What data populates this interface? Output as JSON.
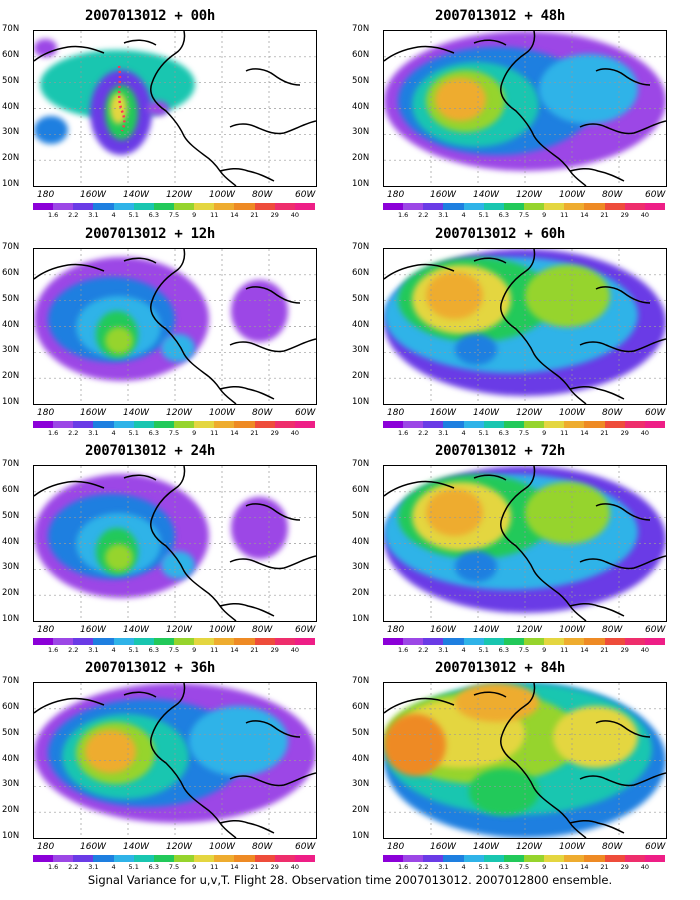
{
  "panels": [
    {
      "title": "2007013012 + 00h",
      "col": 0,
      "row": 0,
      "level": 0
    },
    {
      "title": "2007013012 + 48h",
      "col": 1,
      "row": 0,
      "level": 2
    },
    {
      "title": "2007013012 + 12h",
      "col": 0,
      "row": 1,
      "level": 1
    },
    {
      "title": "2007013012 + 60h",
      "col": 1,
      "row": 1,
      "level": 3
    },
    {
      "title": "2007013012 + 24h",
      "col": 0,
      "row": 2,
      "level": 1
    },
    {
      "title": "2007013012 + 72h",
      "col": 1,
      "row": 2,
      "level": 3
    },
    {
      "title": "2007013012 + 36h",
      "col": 0,
      "row": 3,
      "level": 2
    },
    {
      "title": "2007013012 + 84h",
      "col": 1,
      "row": 3,
      "level": 4
    }
  ],
  "lat_labels": [
    "70N",
    "60N",
    "50N",
    "40N",
    "30N",
    "20N",
    "10N"
  ],
  "lon_labels": [
    "180",
    "160W",
    "140W",
    "120W",
    "100W",
    "80W",
    "60W"
  ],
  "colorbar": {
    "colors": [
      "#8b00d8",
      "#9c47e6",
      "#6a3be6",
      "#1e7fe0",
      "#2fb3e8",
      "#19c6b0",
      "#22c95a",
      "#96d42d",
      "#e4d640",
      "#eeac2f",
      "#ee8a24",
      "#ee4c3b",
      "#ee2e6c",
      "#ee1e86"
    ],
    "labels": [
      "1.6",
      "2.2",
      "3.1",
      "4",
      "5.1",
      "6.3",
      "7.5",
      "9",
      "11",
      "14",
      "21",
      "29",
      "40"
    ]
  },
  "caption": "Signal Variance for u,v,T. Flight 28. Observation time 2007013012. 2007012800 ensemble."
}
